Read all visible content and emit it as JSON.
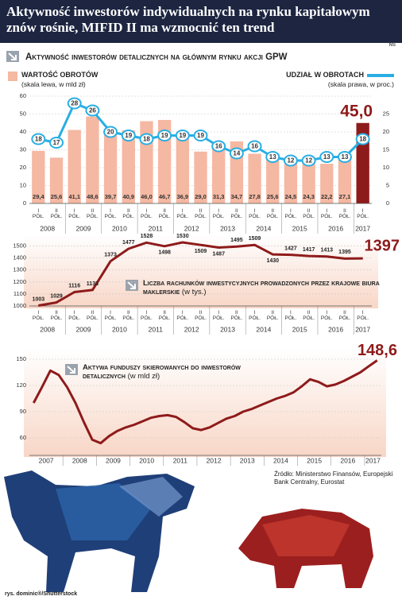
{
  "title": "Aktywność inwestorów indywidualnych na rynku kapitałowym znów rośnie, MIFID II ma wzmocnić ten trend",
  "logo": "NS",
  "source": "Źródło: Ministerstwo Finansów, Europejski Bank Centralny, Eurostat",
  "credit": "rys. dominic®/Shutterstock",
  "chart_data": [
    {
      "type": "bar",
      "title": "Aktywność inwestorów detalicznych na głównym rynku akcji GPW",
      "categories": [
        "I PÓŁ.",
        "II PÓŁ.",
        "I PÓŁ.",
        "II PÓŁ.",
        "I PÓŁ.",
        "II PÓŁ.",
        "I PÓŁ.",
        "II PÓŁ.",
        "I PÓŁ.",
        "II PÓŁ.",
        "I PÓŁ.",
        "II PÓŁ.",
        "I PÓŁ.",
        "II PÓŁ.",
        "I PÓŁ.",
        "II PÓŁ.",
        "I PÓŁ.",
        "II PÓŁ.",
        "I PÓŁ."
      ],
      "x_groups": [
        "2008",
        "2009",
        "2010",
        "2011",
        "2012",
        "2013",
        "2014",
        "2015",
        "2016",
        "2017"
      ],
      "series": [
        {
          "name": "WARTOŚĆ OBROTÓW",
          "note": "(skala lewa, w mld zł)",
          "color": "#f5b8a2",
          "values": [
            29.4,
            25.6,
            41.1,
            48.6,
            39.7,
            40.9,
            46.0,
            46.7,
            36.9,
            29.0,
            31.3,
            34.7,
            27.8,
            25.6,
            24.5,
            24.3,
            22.2,
            27.1,
            45.0
          ],
          "value_labels": [
            "29,4",
            "25,6",
            "41,1",
            "48,6",
            "39,7",
            "40,9",
            "46,0",
            "46,7",
            "36,9",
            "29,0",
            "31,3",
            "34,7",
            "27,8",
            "25,6",
            "24,5",
            "24,3",
            "22,2",
            "27,1",
            "45,0"
          ]
        },
        {
          "name": "UDZIAŁ W OBROTACH",
          "note": "(skala prawa, w proc.)",
          "color": "#29aee3",
          "type": "line",
          "axis": "y2",
          "values": [
            18,
            17,
            28,
            26,
            20,
            19,
            18,
            19,
            19,
            19,
            16,
            14,
            16,
            13,
            12,
            12,
            13,
            13,
            18
          ]
        }
      ],
      "highlight_color": "#8e1b1b",
      "ylim": [
        0,
        60
      ],
      "yticks": [
        0,
        10,
        20,
        30,
        40,
        50,
        60
      ],
      "y2lim": [
        0,
        30
      ],
      "y2ticks": [
        0,
        5,
        10,
        15,
        20,
        25
      ],
      "grid": true
    },
    {
      "type": "line",
      "title": "Liczba rachunków inwestycyjnych prowadzonych przez krajowe biura maklerskie",
      "subtitle": "(w tys.)",
      "categories": [
        "I PÓŁ.",
        "II PÓŁ.",
        "I PÓŁ.",
        "II PÓŁ.",
        "I PÓŁ.",
        "II PÓŁ.",
        "I PÓŁ.",
        "II PÓŁ.",
        "I PÓŁ.",
        "II PÓŁ.",
        "I PÓŁ.",
        "II PÓŁ.",
        "I PÓŁ.",
        "II PÓŁ.",
        "I PÓŁ.",
        "II PÓŁ.",
        "I PÓŁ.",
        "II PÓŁ.",
        "I PÓŁ."
      ],
      "x_groups": [
        "2008",
        "2009",
        "2010",
        "2011",
        "2012",
        "2013",
        "2014",
        "2015",
        "2016",
        "2017"
      ],
      "values": [
        1003,
        1029,
        1116,
        1133,
        1373,
        1477,
        1528,
        1498,
        1530,
        1509,
        1487,
        1495,
        1509,
        1430,
        1427,
        1417,
        1413,
        1395,
        1397
      ],
      "color": "#8e1b1b",
      "data_labels": true,
      "ylim": [
        1000,
        1550
      ],
      "yticks": [
        1000,
        1100,
        1200,
        1300,
        1400,
        1500
      ],
      "grid": true
    },
    {
      "type": "line",
      "title": "Aktywa funduszy skierowanych do inwestorów detalicznych",
      "subtitle": "(w mld zł)",
      "categories": [
        "2007",
        null,
        null,
        null,
        "2008",
        null,
        null,
        null,
        "2009",
        null,
        null,
        null,
        "2010",
        null,
        null,
        null,
        "2011",
        null,
        null,
        null,
        "2012",
        null,
        null,
        null,
        "2013",
        null,
        null,
        null,
        "2014",
        null,
        null,
        null,
        "2015",
        null,
        null,
        null,
        "2016",
        null,
        null,
        null,
        "2017",
        null
      ],
      "values": [
        100,
        118,
        137,
        132,
        118,
        100,
        78,
        58,
        54,
        62,
        68,
        72,
        75,
        79,
        83,
        85,
        86,
        84,
        78,
        71,
        69,
        72,
        77,
        82,
        85,
        90,
        93,
        97,
        101,
        105,
        108,
        112,
        119,
        127,
        124,
        119,
        121,
        125,
        130,
        135,
        142,
        148.6
      ],
      "value_labels": [
        null,
        null,
        null,
        null,
        null,
        null,
        null,
        null,
        null,
        null,
        null,
        null,
        null,
        null,
        null,
        null,
        null,
        null,
        null,
        null,
        null,
        null,
        null,
        null,
        null,
        null,
        null,
        null,
        null,
        null,
        null,
        null,
        null,
        null,
        null,
        null,
        null,
        null,
        null,
        null,
        null,
        "148,6"
      ],
      "color": "#8e1b1b",
      "ylim": [
        40,
        150
      ],
      "yticks": [
        60,
        90,
        120,
        150
      ],
      "grid": true
    }
  ]
}
